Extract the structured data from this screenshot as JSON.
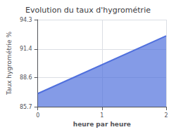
{
  "chart_data": {
    "type": "area",
    "title": "Evolution du taux d'hygrométrie",
    "xlabel": "heure par heure",
    "ylabel": "Taux hygrométrie %",
    "x": [
      0,
      2
    ],
    "values": [
      87.0,
      92.7
    ],
    "xlim": [
      0,
      2
    ],
    "xticks": [
      0,
      1,
      2
    ],
    "ylim": [
      85.7,
      94.3
    ],
    "yticks": [
      85.7,
      88.6,
      91.4,
      94.3
    ],
    "grid": true
  }
}
